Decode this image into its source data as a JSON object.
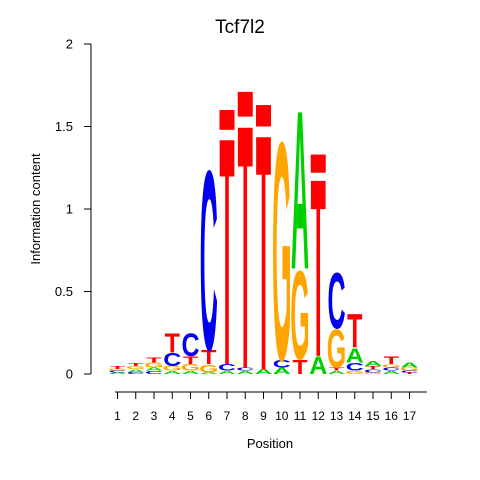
{
  "chart_data": {
    "type": "sequence-logo",
    "title": "Tcf7l2",
    "xlabel": "Position",
    "ylabel": "Information content",
    "ylim": [
      0,
      2
    ],
    "y_ticks": [
      "0",
      "0.5",
      "1",
      "1.5",
      "2"
    ],
    "x_ticks": [
      "1",
      "2",
      "3",
      "4",
      "5",
      "6",
      "7",
      "8",
      "9",
      "10",
      "11",
      "12",
      "13",
      "14",
      "15",
      "16",
      "17"
    ],
    "colors": {
      "A": "#00d000",
      "C": "#0000ee",
      "G": "#ffa500",
      "T": "#ff0000"
    },
    "positions": [
      {
        "position": 1,
        "letters": [
          {
            "base": "A",
            "height": 0.01
          },
          {
            "base": "C",
            "height": 0.01
          },
          {
            "base": "G",
            "height": 0.01
          },
          {
            "base": "T",
            "height": 0.02
          }
        ]
      },
      {
        "position": 2,
        "letters": [
          {
            "base": "C",
            "height": 0.01
          },
          {
            "base": "A",
            "height": 0.02
          },
          {
            "base": "G",
            "height": 0.02
          },
          {
            "base": "T",
            "height": 0.02
          }
        ]
      },
      {
        "position": 3,
        "letters": [
          {
            "base": "C",
            "height": 0.02
          },
          {
            "base": "A",
            "height": 0.02
          },
          {
            "base": "G",
            "height": 0.03
          },
          {
            "base": "T",
            "height": 0.03
          }
        ]
      },
      {
        "position": 4,
        "letters": [
          {
            "base": "A",
            "height": 0.02
          },
          {
            "base": "G",
            "height": 0.03
          },
          {
            "base": "C",
            "height": 0.08
          },
          {
            "base": "T",
            "height": 0.12
          }
        ]
      },
      {
        "position": 5,
        "letters": [
          {
            "base": "A",
            "height": 0.02
          },
          {
            "base": "G",
            "height": 0.04
          },
          {
            "base": "T",
            "height": 0.05
          },
          {
            "base": "C",
            "height": 0.14
          }
        ]
      },
      {
        "position": 6,
        "letters": [
          {
            "base": "A",
            "height": 0.01
          },
          {
            "base": "G",
            "height": 0.05
          },
          {
            "base": "T",
            "height": 0.09
          },
          {
            "base": "C",
            "height": 1.12
          }
        ]
      },
      {
        "position": 7,
        "letters": [
          {
            "base": "A",
            "height": 0.02
          },
          {
            "base": "C",
            "height": 0.04
          },
          {
            "base": "T",
            "height": 1.42
          },
          {
            "base": "T",
            "height": 0.12,
            "glyph": "box"
          }
        ]
      },
      {
        "position": 8,
        "letters": [
          {
            "base": "A",
            "height": 0.02
          },
          {
            "base": "C",
            "height": 0.02
          },
          {
            "base": "T",
            "height": 1.52
          },
          {
            "base": "T",
            "height": 0.15,
            "glyph": "box"
          }
        ]
      },
      {
        "position": 9,
        "letters": [
          {
            "base": "A",
            "height": 0.03
          },
          {
            "base": "T",
            "height": 1.47
          },
          {
            "base": "T",
            "height": 0.13,
            "glyph": "box"
          }
        ]
      },
      {
        "position": 10,
        "letters": [
          {
            "base": "A",
            "height": 0.04
          },
          {
            "base": "C",
            "height": 0.05
          },
          {
            "base": "G",
            "height": 1.36
          }
        ]
      },
      {
        "position": 11,
        "letters": [
          {
            "base": "T",
            "height": 0.09
          },
          {
            "base": "G",
            "height": 0.55
          },
          {
            "base": "A",
            "height": 0.99
          }
        ]
      },
      {
        "position": 12,
        "letters": [
          {
            "base": "A",
            "height": 0.11
          },
          {
            "base": "T",
            "height": 1.11
          },
          {
            "base": "T",
            "height": 0.11,
            "glyph": "box"
          }
        ]
      },
      {
        "position": 13,
        "letters": [
          {
            "base": "A",
            "height": 0.02
          },
          {
            "base": "T",
            "height": 0.02
          },
          {
            "base": "G",
            "height": 0.24
          },
          {
            "base": "C",
            "height": 0.35
          }
        ]
      },
      {
        "position": 14,
        "letters": [
          {
            "base": "G",
            "height": 0.02
          },
          {
            "base": "C",
            "height": 0.05
          },
          {
            "base": "A",
            "height": 0.09
          },
          {
            "base": "T",
            "height": 0.21
          }
        ]
      },
      {
        "position": 15,
        "letters": [
          {
            "base": "G",
            "height": 0.01
          },
          {
            "base": "C",
            "height": 0.02
          },
          {
            "base": "T",
            "height": 0.02
          },
          {
            "base": "A",
            "height": 0.03
          }
        ]
      },
      {
        "position": 16,
        "letters": [
          {
            "base": "A",
            "height": 0.02
          },
          {
            "base": "C",
            "height": 0.02
          },
          {
            "base": "G",
            "height": 0.02
          },
          {
            "base": "T",
            "height": 0.05
          }
        ]
      },
      {
        "position": 17,
        "letters": [
          {
            "base": "T",
            "height": 0.01
          },
          {
            "base": "C",
            "height": 0.01
          },
          {
            "base": "G",
            "height": 0.02
          },
          {
            "base": "A",
            "height": 0.03
          }
        ]
      }
    ]
  }
}
